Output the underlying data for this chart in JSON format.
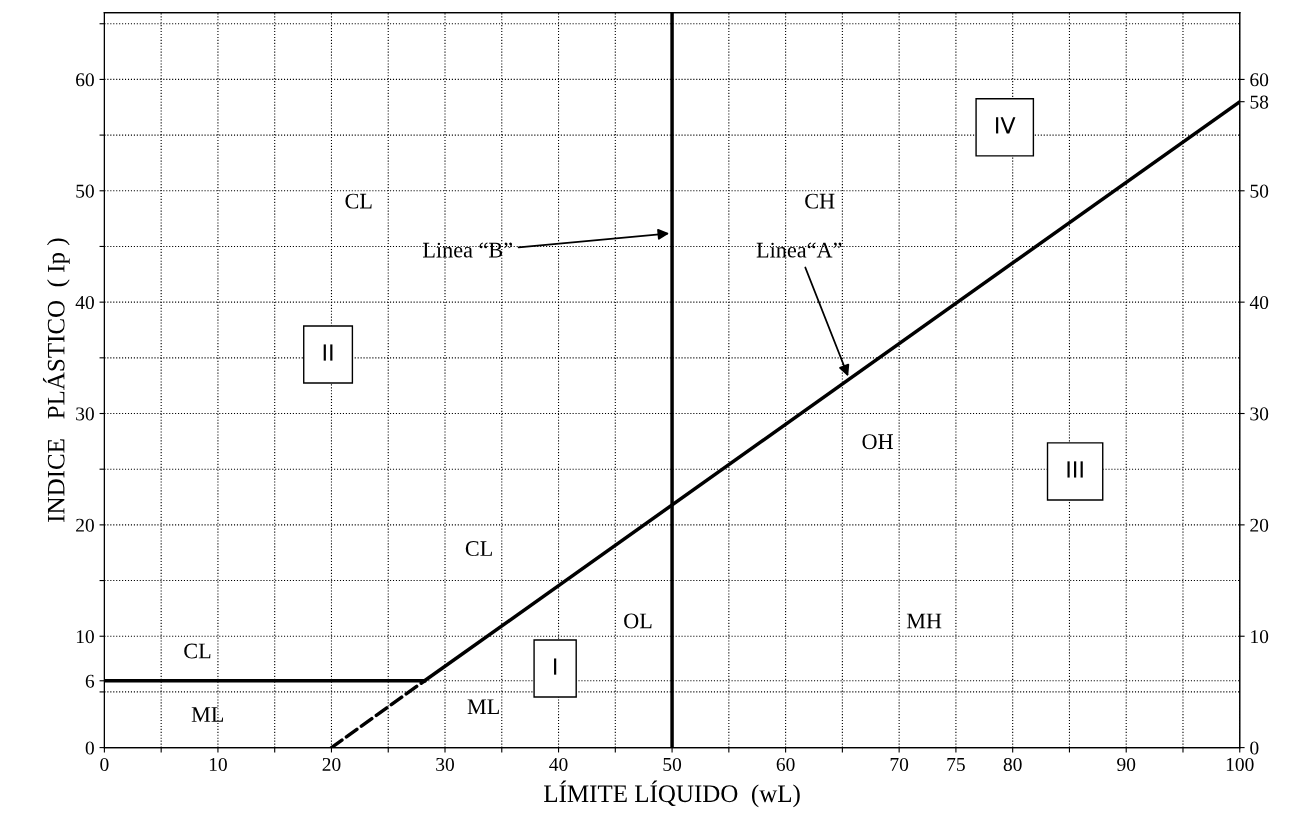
{
  "chart_data": {
    "type": "line",
    "xlabel": "LÍMITE LÍQUIDO  (wL)",
    "ylabel": "INDICE   PLÁSTICO  ( Ip )",
    "xlim": [
      0,
      100
    ],
    "ylim": [
      0,
      66
    ],
    "y2lim": [
      0,
      66
    ],
    "xticks": [
      0,
      {
        "value": 5,
        "label": null
      },
      10,
      {
        "value": 15,
        "label": null
      },
      20,
      {
        "value": 25,
        "label": null
      },
      30,
      {
        "value": 35,
        "label": null
      },
      40,
      {
        "value": 45,
        "label": null
      },
      50,
      {
        "value": 55,
        "label": null
      },
      60,
      {
        "value": 65,
        "label": null
      },
      70,
      75,
      80,
      {
        "value": 85,
        "label": null
      },
      90,
      {
        "value": 95,
        "label": null
      },
      100
    ],
    "yticks": [
      0,
      {
        "value": 5,
        "label": null
      },
      6,
      10,
      {
        "value": 15,
        "label": null
      },
      20,
      {
        "value": 25,
        "label": null
      },
      30,
      {
        "value": 35,
        "label": null
      },
      40,
      {
        "value": 45,
        "label": null
      },
      50,
      {
        "value": 55,
        "label": null
      },
      60,
      {
        "value": 65,
        "label": null
      }
    ],
    "y2ticks": [
      0,
      10,
      20,
      30,
      40,
      50,
      58,
      60
    ],
    "grid": true,
    "marker": "none",
    "series": [
      {
        "color": "#000000",
        "line_style": "solid",
        "x": [
          28.2,
          100
        ],
        "values": [
          6,
          58
        ]
      },
      {
        "color": "#000000",
        "line_style": "dashed",
        "x": [
          20,
          28.2
        ],
        "values": [
          0,
          6
        ]
      },
      {
        "color": "#000000",
        "line_style": "solid",
        "x": [
          0,
          28.2
        ],
        "values": [
          6,
          6
        ]
      }
    ],
    "ref_lines": [
      {
        "axis": "x",
        "value": 50,
        "color": "#000000",
        "line_style": "solid"
      }
    ],
    "annotations": [
      "CL",
      "CH",
      {
        "text": "Linea “B”",
        "x": 50,
        "y": 46.2
      },
      {
        "text": "Linea“A”",
        "x": 65.6,
        "y": 33.1
      },
      "II",
      "IV",
      "OH",
      "III",
      "CL",
      "OL",
      "MH",
      "CL",
      "I",
      "ML",
      "ML"
    ]
  }
}
